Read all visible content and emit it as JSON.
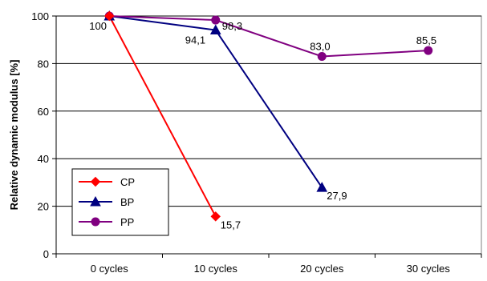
{
  "chart_data": {
    "type": "line",
    "title": "",
    "xlabel": "",
    "ylabel": "Relative dynamic modulus [%]",
    "ylim": [
      0,
      100
    ],
    "yticks": [
      0,
      20,
      40,
      60,
      80,
      100
    ],
    "categories": [
      "0 cycles",
      "10 cycles",
      "20 cycles",
      "30 cycles"
    ],
    "grid": "horizontal",
    "legend_position": "lower-left",
    "series": [
      {
        "name": "CP",
        "color": "#ff0000",
        "marker": "diamond",
        "values": [
          100,
          15.7,
          null,
          null
        ],
        "labels": [
          "",
          "15,7",
          "",
          ""
        ]
      },
      {
        "name": "BP",
        "color": "#000080",
        "marker": "triangle",
        "values": [
          100,
          94.1,
          27.9,
          null
        ],
        "labels": [
          "100",
          "94,1",
          "27,9",
          ""
        ]
      },
      {
        "name": "PP",
        "color": "#800080",
        "marker": "circle",
        "values": [
          100,
          98.3,
          83.0,
          85.5
        ],
        "labels": [
          "",
          "98,3",
          "83,0",
          "85,5"
        ]
      }
    ]
  }
}
